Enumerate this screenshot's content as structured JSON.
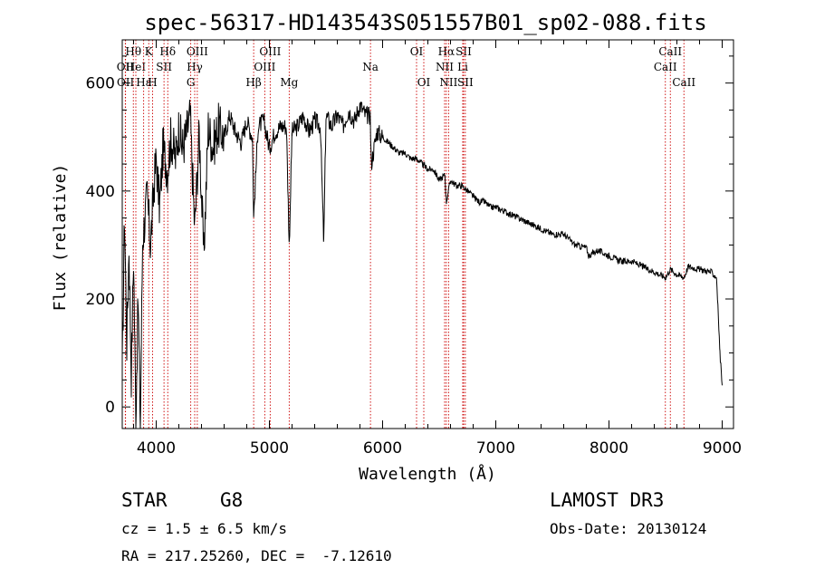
{
  "chart_data": {
    "type": "line",
    "title": "spec-56317-HD143543S051557B01_sp02-088.fits",
    "xlabel": "Wavelength (Å)",
    "ylabel": "Flux (relative)",
    "xlim": [
      3700,
      9100
    ],
    "ylim": [
      -40,
      680
    ],
    "xticks": [
      4000,
      5000,
      6000,
      7000,
      8000,
      9000
    ],
    "yticks": [
      0,
      200,
      400,
      600
    ],
    "series": [
      {
        "name": "spectrum",
        "x": [
          3700,
          3720,
          3740,
          3760,
          3780,
          3800,
          3820,
          3840,
          3860,
          3880,
          3900,
          3920,
          3950,
          3980,
          4000,
          4030,
          4060,
          4100,
          4130,
          4170,
          4200,
          4230,
          4260,
          4300,
          4340,
          4380,
          4420,
          4460,
          4500,
          4550,
          4600,
          4650,
          4700,
          4750,
          4800,
          4850,
          4861,
          4900,
          4950,
          5000,
          5050,
          5100,
          5150,
          5175,
          5200,
          5250,
          5300,
          5350,
          5400,
          5450,
          5480,
          5500,
          5550,
          5600,
          5650,
          5700,
          5750,
          5800,
          5850,
          5890,
          5900,
          5950,
          6000,
          6050,
          6100,
          6150,
          6200,
          6250,
          6300,
          6350,
          6400,
          6450,
          6500,
          6550,
          6563,
          6600,
          6650,
          6700,
          6750,
          6800,
          6850,
          6900,
          6950,
          7000,
          7100,
          7200,
          7300,
          7400,
          7500,
          7600,
          7700,
          7800,
          7820,
          7900,
          8000,
          8100,
          8200,
          8300,
          8400,
          8498,
          8542,
          8600,
          8662,
          8700,
          8800,
          8900,
          8950,
          8980,
          9000
        ],
        "y": [
          60,
          360,
          120,
          300,
          60,
          280,
          -20,
          200,
          -30,
          310,
          350,
          390,
          300,
          410,
          460,
          370,
          480,
          440,
          500,
          460,
          520,
          480,
          500,
          540,
          330,
          510,
          280,
          520,
          480,
          520,
          500,
          540,
          510,
          490,
          530,
          500,
          350,
          520,
          530,
          480,
          510,
          520,
          520,
          300,
          510,
          520,
          540,
          510,
          530,
          520,
          300,
          540,
          520,
          540,
          520,
          550,
          530,
          560,
          540,
          540,
          450,
          510,
          500,
          490,
          480,
          470,
          470,
          460,
          460,
          450,
          440,
          440,
          420,
          430,
          380,
          420,
          410,
          410,
          400,
          390,
          380,
          380,
          370,
          370,
          360,
          350,
          340,
          330,
          320,
          320,
          300,
          295,
          280,
          290,
          280,
          270,
          270,
          260,
          250,
          240,
          255,
          245,
          240,
          260,
          255,
          250,
          240,
          100,
          40
        ]
      }
    ],
    "line_markers": [
      {
        "label": "Hθ",
        "x": 3798,
        "row": 0
      },
      {
        "label": "OII",
        "x": 3727,
        "row": 1
      },
      {
        "label": "OII",
        "x": 3729,
        "row": 2
      },
      {
        "label": "HeI",
        "x": 3820,
        "row": 1
      },
      {
        "label": "Hε",
        "x": 3889,
        "row": 2
      },
      {
        "label": "K",
        "x": 3934,
        "row": 0
      },
      {
        "label": "H",
        "x": 3968,
        "row": 2
      },
      {
        "label": "SII",
        "x": 4069,
        "row": 1
      },
      {
        "label": "Hδ",
        "x": 4102,
        "row": 0
      },
      {
        "label": "OIII",
        "x": 4363,
        "row": 0
      },
      {
        "label": "Hγ",
        "x": 4340,
        "row": 1
      },
      {
        "label": "G",
        "x": 4305,
        "row": 2
      },
      {
        "label": "Hβ",
        "x": 4861,
        "row": 2
      },
      {
        "label": "OIII",
        "x": 5007,
        "row": 0
      },
      {
        "label": "OIII",
        "x": 4959,
        "row": 1
      },
      {
        "label": "Mg",
        "x": 5175,
        "row": 2
      },
      {
        "label": "Na",
        "x": 5893,
        "row": 1
      },
      {
        "label": "OI",
        "x": 6300,
        "row": 0
      },
      {
        "label": "OI",
        "x": 6364,
        "row": 2
      },
      {
        "label": "Hα",
        "x": 6563,
        "row": 0
      },
      {
        "label": "NII",
        "x": 6548,
        "row": 1
      },
      {
        "label": "NII",
        "x": 6583,
        "row": 2
      },
      {
        "label": "SII",
        "x": 6716,
        "row": 0
      },
      {
        "label": "Li",
        "x": 6708,
        "row": 1
      },
      {
        "label": "SII",
        "x": 6731,
        "row": 2
      },
      {
        "label": "CaII",
        "x": 8542,
        "row": 0
      },
      {
        "label": "CaII",
        "x": 8498,
        "row": 1
      },
      {
        "label": "CaII",
        "x": 8662,
        "row": 2
      }
    ],
    "colors": {
      "spectrum": "#000000",
      "markers": "#cc0000",
      "axes": "#000000"
    }
  },
  "info": {
    "object_class": "STAR",
    "subclass": "G8",
    "survey": "LAMOST DR3",
    "cz": "cz = 1.5 ± 6.5 km/s",
    "obs_date": "Obs-Date: 20130124",
    "coords": "RA = 217.25260, DEC =  -7.12610"
  }
}
